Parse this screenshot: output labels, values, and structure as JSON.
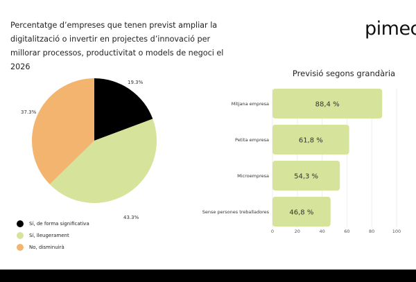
{
  "title": "Percentatge d’empreses que tenen previst ampliar la digitalització o invertir en projectes d’innovació per millorar processos, productivitat o models de negoci el 2026",
  "logo": "pimec",
  "chart_data": [
    {
      "type": "pie",
      "labels": [
        "Sí, de forma significativa",
        "Sí, lleugerament",
        "No, disminuirà"
      ],
      "values": [
        19.3,
        43.3,
        37.3
      ],
      "value_labels": [
        "19.3%",
        "43.3%",
        "37.3%"
      ],
      "colors": [
        "#000000",
        "#d6e39a",
        "#f2b46e"
      ],
      "legend": "bottom-left"
    },
    {
      "type": "bar",
      "orientation": "horizontal",
      "title": "Previsió segons grandària",
      "categories": [
        "Mitjana empresa",
        "Petita empresa",
        "Microempresa",
        "Sense persones treballadores"
      ],
      "values": [
        88.4,
        61.8,
        54.3,
        46.8
      ],
      "value_labels": [
        "88,4 %",
        "61,8 %",
        "54,3 %",
        "46,8 %"
      ],
      "xlim": [
        0,
        100
      ],
      "xticks": [
        "0",
        "20",
        "40",
        "60",
        "80",
        "100"
      ],
      "color": "#d6e39a",
      "grid": true
    }
  ]
}
